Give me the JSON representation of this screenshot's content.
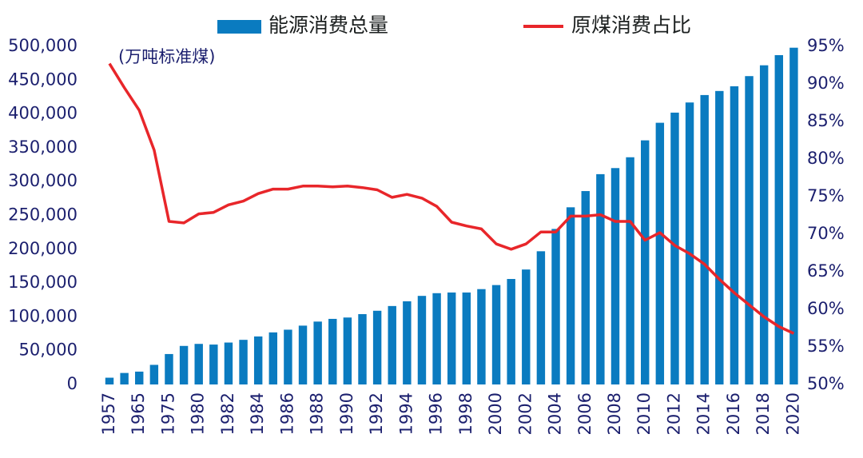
{
  "chart_data": {
    "type": "bar-line",
    "annotation": "(万吨标准煤)",
    "categories": [
      "1957",
      null,
      "1965",
      null,
      "1975",
      null,
      "1980",
      null,
      "1982",
      null,
      "1984",
      null,
      "1986",
      null,
      "1988",
      null,
      "1990",
      null,
      "1992",
      null,
      "1994",
      null,
      "1996",
      null,
      "1998",
      null,
      "2000",
      null,
      "2002",
      null,
      "2004",
      null,
      "2006",
      null,
      "2008",
      null,
      "2010",
      null,
      "2012",
      null,
      "2014",
      null,
      "2016",
      null,
      "2018",
      null,
      "2020"
    ],
    "series": [
      {
        "name": "能源消费总量",
        "type": "bar",
        "color": "#0a7bc0",
        "values": [
          10000,
          17000,
          19000,
          29000,
          45000,
          57000,
          60000,
          59000,
          62000,
          66000,
          71000,
          77000,
          81000,
          87000,
          93000,
          97000,
          99000,
          104000,
          109000,
          116000,
          123000,
          131000,
          135000,
          136000,
          136000,
          141000,
          147000,
          156000,
          170000,
          197000,
          230000,
          262000,
          286000,
          311000,
          320000,
          336000,
          361000,
          387000,
          402000,
          417000,
          428000,
          434000,
          441000,
          456000,
          472000,
          487000,
          498000
        ]
      },
      {
        "name": "原煤消费占比",
        "type": "line",
        "axis": "y2",
        "color": "#e8262a",
        "values": [
          92.7,
          89.5,
          86.5,
          81.2,
          71.7,
          71.5,
          72.7,
          72.9,
          73.9,
          74.4,
          75.4,
          76.0,
          76.0,
          76.4,
          76.4,
          76.3,
          76.4,
          76.2,
          75.9,
          74.9,
          75.3,
          74.8,
          73.7,
          71.6,
          71.1,
          70.7,
          68.7,
          68.0,
          68.7,
          70.3,
          70.3,
          72.4,
          72.4,
          72.6,
          71.7,
          71.7,
          69.2,
          70.2,
          68.5,
          67.4,
          66.0,
          64.0,
          62.2,
          60.6,
          59.0,
          57.7,
          56.8
        ]
      }
    ],
    "ylim": [
      0,
      500000
    ],
    "yticks": [
      0,
      {
        "value": 50000,
        "label": "50,000"
      },
      {
        "value": 100000,
        "label": "100,000"
      },
      {
        "value": 150000,
        "label": "150,000"
      },
      {
        "value": 200000,
        "label": "200,000"
      },
      {
        "value": 250000,
        "label": "250,000"
      },
      {
        "value": 300000,
        "label": "300,000"
      },
      {
        "value": 350000,
        "label": "350,000"
      },
      {
        "value": 400000,
        "label": "400,000"
      },
      {
        "value": 450000,
        "label": "450,000"
      },
      {
        "value": 500000,
        "label": "500,000"
      }
    ],
    "y2lim": [
      50,
      95
    ],
    "y2ticks": [
      {
        "value": 50,
        "label": "50%"
      },
      {
        "value": 55,
        "label": "55%"
      },
      {
        "value": 60,
        "label": "60%"
      },
      {
        "value": 65,
        "label": "65%"
      },
      {
        "value": 70,
        "label": "70%"
      },
      {
        "value": 75,
        "label": "75%"
      },
      {
        "value": 80,
        "label": "80%"
      },
      {
        "value": 85,
        "label": "85%"
      },
      {
        "value": 90,
        "label": "90%"
      },
      {
        "value": 95,
        "label": "95%"
      }
    ],
    "grid": false,
    "legend": "top"
  }
}
